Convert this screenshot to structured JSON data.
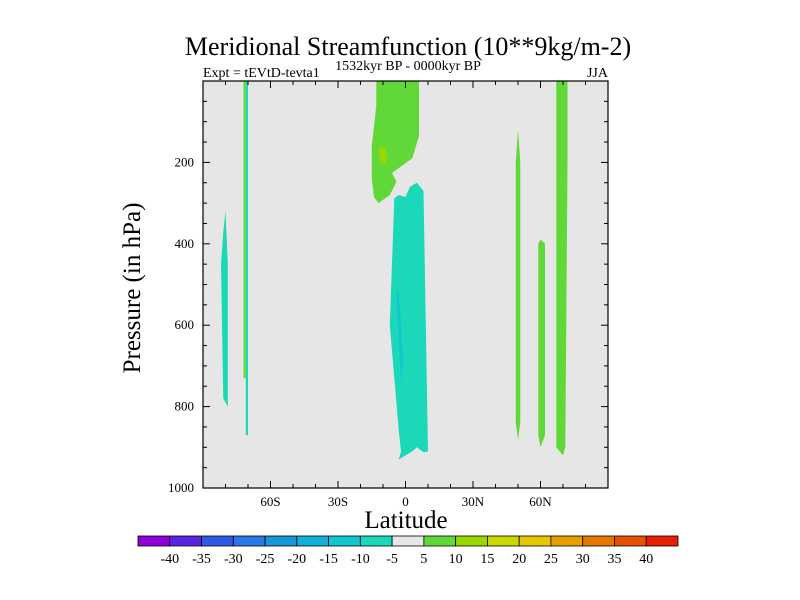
{
  "chart_data": {
    "type": "heatmap",
    "title": "Meridional Streamfunction (10**9kg/m-2)",
    "subtitle_left": "Expt = tEVtD-tevta1",
    "subtitle_center": "1532kyr BP - 0000kyr BP",
    "subtitle_right": "JJA",
    "xlabel": "Latitude",
    "ylabel": "Pressure (in hPa)",
    "xlim": [
      -90,
      90
    ],
    "ylim": [
      1000,
      0
    ],
    "x_ticks": [
      {
        "value": -60,
        "label": "60S"
      },
      {
        "value": -30,
        "label": "30S"
      },
      {
        "value": 0,
        "label": "0"
      },
      {
        "value": 30,
        "label": "30N"
      },
      {
        "value": 60,
        "label": "60N"
      }
    ],
    "y_ticks": [
      {
        "value": 200,
        "label": "200"
      },
      {
        "value": 400,
        "label": "400"
      },
      {
        "value": 600,
        "label": "600"
      },
      {
        "value": 800,
        "label": "800"
      },
      {
        "value": 1000,
        "label": "1000"
      }
    ],
    "background_color": "#e6e6e6",
    "colorbar": {
      "labels": [
        "-40",
        "-35",
        "-30",
        "-25",
        "-20",
        "-15",
        "-10",
        "-5",
        "5",
        "10",
        "15",
        "20",
        "25",
        "30",
        "35",
        "40"
      ],
      "colors": [
        "#8f00d6",
        "#5a25e0",
        "#2f5ae6",
        "#2878e8",
        "#1498d8",
        "#10b0d8",
        "#10c8d0",
        "#1ad8b8",
        "#e6e6e6",
        "#60d838",
        "#98d800",
        "#c8d800",
        "#e6c800",
        "#e6a000",
        "#e67800",
        "#e65000",
        "#e62000"
      ]
    },
    "contour_regions": [
      {
        "name": "green-upper-equator",
        "level": "5 to 10",
        "color": "#60d838",
        "points": [
          [
            -13,
            0
          ],
          [
            -13,
            60
          ],
          [
            -15,
            160
          ],
          [
            -15,
            240
          ],
          [
            -14,
            285
          ],
          [
            -12,
            300
          ],
          [
            -7,
            280
          ],
          [
            -4,
            248
          ],
          [
            -6,
            226
          ],
          [
            3,
            190
          ],
          [
            6,
            135
          ],
          [
            6,
            0
          ]
        ]
      },
      {
        "name": "yellow-green-core",
        "level": "10 to 15",
        "color": "#98d800",
        "points": [
          [
            -11,
            160
          ],
          [
            -12,
            175
          ],
          [
            -11,
            200
          ],
          [
            -9,
            205
          ],
          [
            -8,
            190
          ],
          [
            -9,
            165
          ]
        ]
      },
      {
        "name": "cyan-equatorial-cell",
        "level": "-10 to -5",
        "color": "#1ad8b8",
        "points": [
          [
            -5,
            288
          ],
          [
            -7,
            600
          ],
          [
            -3,
            860
          ],
          [
            -2,
            910
          ],
          [
            -3,
            930
          ],
          [
            0,
            920
          ],
          [
            3,
            910
          ],
          [
            5,
            900
          ],
          [
            8,
            912
          ],
          [
            10,
            910
          ],
          [
            9,
            600
          ],
          [
            8,
            270
          ],
          [
            5,
            250
          ],
          [
            2,
            260
          ],
          [
            0,
            285
          ],
          [
            -3,
            280
          ]
        ]
      },
      {
        "name": "cyan-deep-core",
        "level": "-15 to -10",
        "color": "#10c8d0",
        "points": [
          [
            -4,
            520
          ],
          [
            -3,
            640
          ],
          [
            -2,
            740
          ],
          [
            -1,
            700
          ],
          [
            -2,
            600
          ],
          [
            -3,
            520
          ]
        ]
      },
      {
        "name": "green-high-lat-north-a",
        "level": "5 to 10",
        "color": "#60d838",
        "points": [
          [
            49,
            200
          ],
          [
            50,
            120
          ],
          [
            51,
            200
          ],
          [
            51,
            840
          ],
          [
            50,
            880
          ],
          [
            49,
            840
          ]
        ]
      },
      {
        "name": "green-high-lat-north-b",
        "level": "5 to 10",
        "color": "#60d838",
        "points": [
          [
            59,
            400
          ],
          [
            60,
            390
          ],
          [
            62,
            400
          ],
          [
            62,
            870
          ],
          [
            60,
            900
          ],
          [
            59,
            870
          ]
        ]
      },
      {
        "name": "green-high-lat-north-c",
        "level": "5 to 10",
        "color": "#60d838",
        "points": [
          [
            67,
            0
          ],
          [
            72,
            0
          ],
          [
            72,
            200
          ],
          [
            71,
            900
          ],
          [
            70,
            920
          ],
          [
            67,
            900
          ]
        ]
      },
      {
        "name": "cyan-high-lat-south",
        "level": "-10 to -5",
        "color": "#1ad8b8",
        "points": [
          [
            -82,
            450
          ],
          [
            -81,
            370
          ],
          [
            -80,
            320
          ],
          [
            -79,
            450
          ],
          [
            -79,
            800
          ],
          [
            -81,
            780
          ]
        ]
      },
      {
        "name": "cyan-thin-south",
        "level": "-10 to -5",
        "color": "#1ad8b8",
        "points": [
          [
            -71,
            0
          ],
          [
            -70,
            0
          ],
          [
            -70,
            870
          ],
          [
            -71,
            870
          ]
        ]
      },
      {
        "name": "green-thin-south",
        "level": "5 to 10",
        "color": "#60d838",
        "points": [
          [
            -72,
            0
          ],
          [
            -71,
            0
          ],
          [
            -71,
            730
          ],
          [
            -72,
            730
          ]
        ]
      }
    ]
  }
}
